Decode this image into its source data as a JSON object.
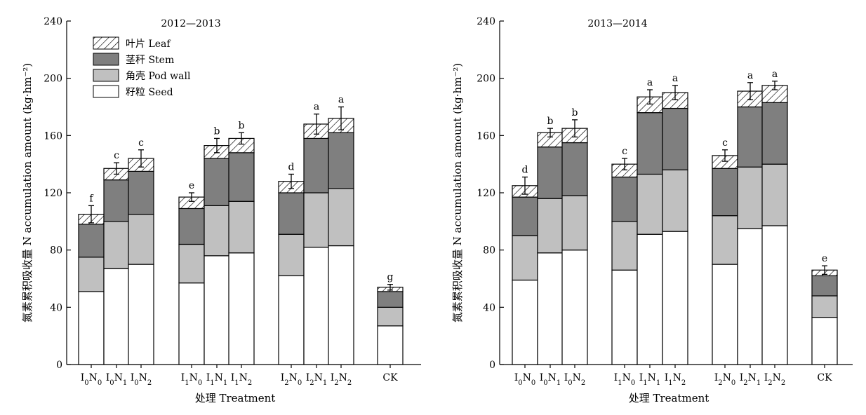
{
  "colors": {
    "seed": "#ffffff",
    "pod_wall": "#c0c0c0",
    "stem": "#7f7f7f",
    "leaf_hatch": "#000000",
    "axis": "#000000"
  },
  "chart_data": [
    {
      "type": "bar",
      "stacked": true,
      "title": "2012—2013",
      "xlabel": "处理 Treatment",
      "ylabel": "氮素累积吸收量 N accumulation amount (kg·hm⁻²)",
      "ylim": [
        0,
        240
      ],
      "yticks": [
        0,
        40,
        80,
        120,
        160,
        200,
        240
      ],
      "legend": {
        "position": "top-left",
        "entries": [
          {
            "key": "leaf",
            "label": "叶片 Leaf"
          },
          {
            "key": "stem",
            "label": "茎秆 Stem"
          },
          {
            "key": "pod_wall",
            "label": "角壳 Pod wall"
          },
          {
            "key": "seed",
            "label": "籽粒 Seed"
          }
        ]
      },
      "categories": [
        {
          "base": "I",
          "i": "0",
          "mid": "N",
          "n": "0"
        },
        {
          "base": "I",
          "i": "0",
          "mid": "N",
          "n": "1"
        },
        {
          "base": "I",
          "i": "0",
          "mid": "N",
          "n": "2"
        },
        {
          "base": "I",
          "i": "1",
          "mid": "N",
          "n": "0"
        },
        {
          "base": "I",
          "i": "1",
          "mid": "N",
          "n": "1"
        },
        {
          "base": "I",
          "i": "1",
          "mid": "N",
          "n": "2"
        },
        {
          "base": "I",
          "i": "2",
          "mid": "N",
          "n": "0"
        },
        {
          "base": "I",
          "i": "2",
          "mid": "N",
          "n": "1"
        },
        {
          "base": "I",
          "i": "2",
          "mid": "N",
          "n": "2"
        },
        {
          "base": "CK",
          "i": "",
          "mid": "",
          "n": ""
        }
      ],
      "series": [
        {
          "name": "籽粒 Seed",
          "key": "seed",
          "values": [
            51,
            67,
            70,
            57,
            76,
            78,
            62,
            82,
            83,
            27
          ]
        },
        {
          "name": "角壳 Pod wall",
          "key": "pod_wall",
          "values": [
            24,
            33,
            35,
            27,
            35,
            36,
            29,
            38,
            40,
            13
          ]
        },
        {
          "name": "茎秆 Stem",
          "key": "stem",
          "values": [
            23,
            29,
            30,
            25,
            33,
            34,
            29,
            38,
            39,
            11
          ]
        },
        {
          "name": "叶片 Leaf",
          "key": "leaf",
          "values": [
            7,
            8,
            9,
            8,
            9,
            10,
            8,
            10,
            10,
            3
          ]
        }
      ],
      "totals": [
        105,
        137,
        144,
        117,
        153,
        158,
        128,
        168,
        172,
        54
      ],
      "error": [
        6,
        4,
        6,
        3,
        5,
        4,
        5,
        7,
        8,
        2
      ],
      "significance": [
        "f",
        "c",
        "c",
        "e",
        "b",
        "b",
        "d",
        "a",
        "a",
        "g"
      ]
    },
    {
      "type": "bar",
      "stacked": true,
      "title": "2013—2014",
      "xlabel": "处理 Treatment",
      "ylabel": "氮素累积吸收量 N accumulation amount (kg·hm⁻²)",
      "ylim": [
        0,
        240
      ],
      "yticks": [
        0,
        40,
        80,
        120,
        160,
        200,
        240
      ],
      "categories": [
        {
          "base": "I",
          "i": "0",
          "mid": "N",
          "n": "0"
        },
        {
          "base": "I",
          "i": "0",
          "mid": "N",
          "n": "1"
        },
        {
          "base": "I",
          "i": "0",
          "mid": "N",
          "n": "2"
        },
        {
          "base": "I",
          "i": "1",
          "mid": "N",
          "n": "0"
        },
        {
          "base": "I",
          "i": "1",
          "mid": "N",
          "n": "1"
        },
        {
          "base": "I",
          "i": "1",
          "mid": "N",
          "n": "2"
        },
        {
          "base": "I",
          "i": "2",
          "mid": "N",
          "n": "0"
        },
        {
          "base": "I",
          "i": "2",
          "mid": "N",
          "n": "1"
        },
        {
          "base": "I",
          "i": "2",
          "mid": "N",
          "n": "2"
        },
        {
          "base": "CK",
          "i": "",
          "mid": "",
          "n": ""
        }
      ],
      "series": [
        {
          "name": "籽粒 Seed",
          "key": "seed",
          "values": [
            59,
            78,
            80,
            66,
            91,
            93,
            70,
            95,
            97,
            33
          ]
        },
        {
          "name": "角壳 Pod wall",
          "key": "pod_wall",
          "values": [
            31,
            38,
            38,
            34,
            42,
            43,
            34,
            43,
            43,
            15
          ]
        },
        {
          "name": "茎秆 Stem",
          "key": "stem",
          "values": [
            27,
            36,
            37,
            31,
            43,
            43,
            33,
            42,
            43,
            14
          ]
        },
        {
          "name": "叶片 Leaf",
          "key": "leaf",
          "values": [
            8,
            10,
            10,
            9,
            11,
            11,
            9,
            11,
            12,
            4
          ]
        }
      ],
      "totals": [
        125,
        162,
        165,
        140,
        187,
        190,
        146,
        191,
        195,
        66
      ],
      "error": [
        6,
        3,
        6,
        4,
        5,
        5,
        4,
        6,
        3,
        3
      ],
      "significance": [
        "d",
        "b",
        "b",
        "c",
        "a",
        "a",
        "c",
        "a",
        "a",
        "e"
      ]
    }
  ]
}
